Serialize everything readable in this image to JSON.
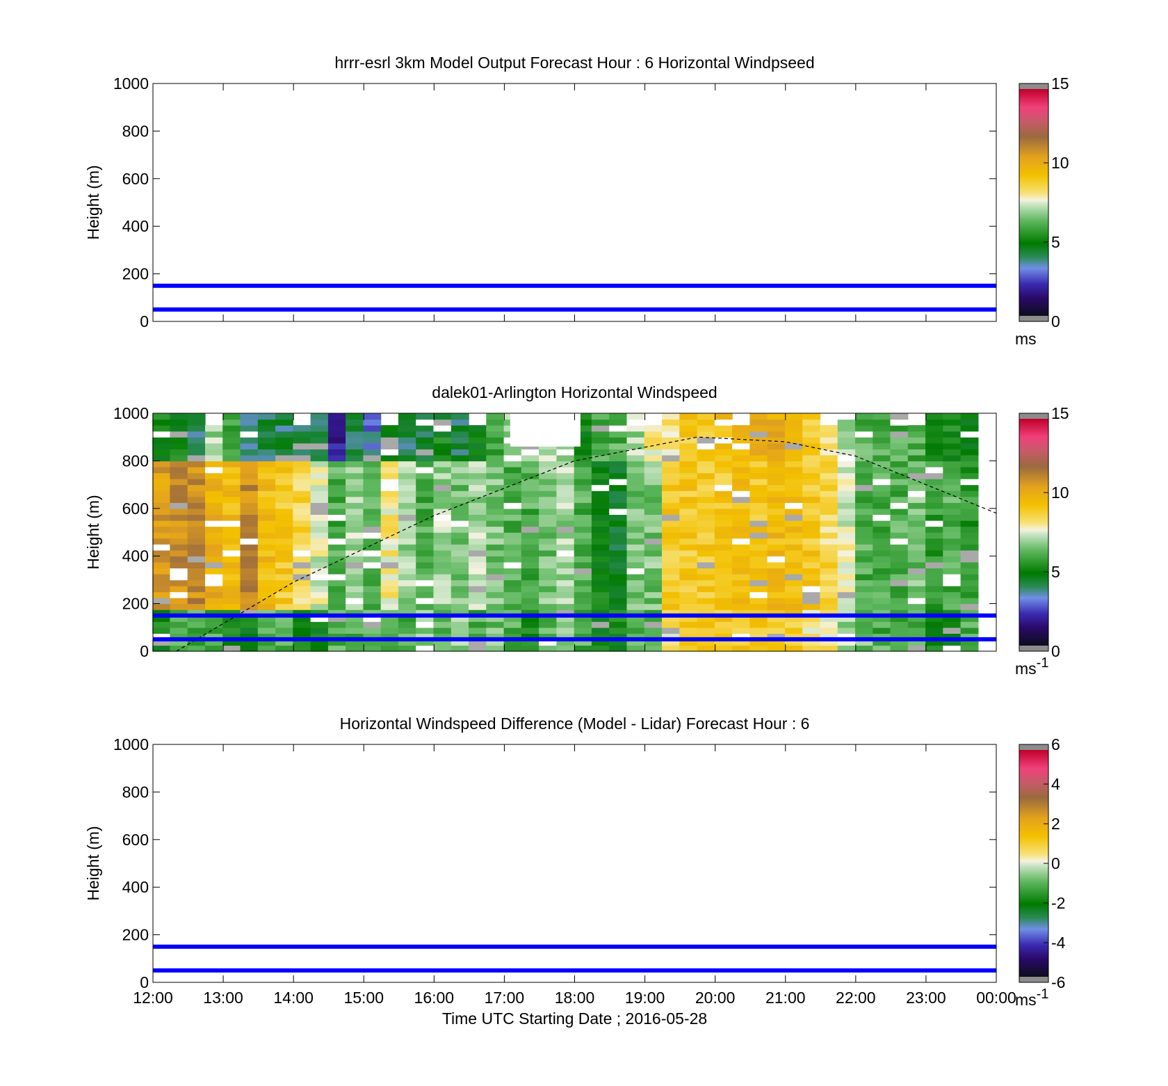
{
  "chart_data": [
    {
      "type": "heatmap",
      "title": "hrrr-esrl 3km Model Output   Forecast Hour : 6 Horizontal Windpseed",
      "ylabel": "Height (m)",
      "xlabel": "",
      "xlim": [
        "12:00",
        "00:00"
      ],
      "ylim": [
        0,
        1000
      ],
      "yticks": [
        0,
        200,
        400,
        600,
        800,
        1000
      ],
      "colorbar": {
        "ticks": [
          "0",
          "5",
          "10",
          "15"
        ],
        "range": [
          0,
          15
        ],
        "unit": "ms",
        "unit_sup": ""
      },
      "cells": "none visible",
      "reference_lines_m": [
        50,
        150
      ],
      "reference_line_color": "#0000ff"
    },
    {
      "type": "heatmap",
      "title": "dalek01-Arlington  Horizontal Windspeed",
      "ylabel": "Height (m)",
      "xlabel": "",
      "xlim": [
        "12:00",
        "00:00"
      ],
      "ylim": [
        0,
        1000
      ],
      "yticks": [
        0,
        200,
        400,
        600,
        800,
        1000
      ],
      "colorbar": {
        "ticks": [
          "0",
          "5",
          "10",
          "15"
        ],
        "range": [
          0,
          15
        ],
        "unit": "ms",
        "unit_sup": "-1"
      },
      "reference_lines_m": [
        50,
        150
      ],
      "reference_line_color": "#0000ff",
      "boundary_layer_curve": {
        "style": "dashed",
        "points": [
          {
            "time": "12:20",
            "height_m": 0
          },
          {
            "time": "14:00",
            "height_m": 290
          },
          {
            "time": "16:00",
            "height_m": 570
          },
          {
            "time": "18:00",
            "height_m": 800
          },
          {
            "time": "19:45",
            "height_m": 900
          },
          {
            "time": "21:00",
            "height_m": 880
          },
          {
            "time": "22:00",
            "height_m": 820
          },
          {
            "time": "00:00",
            "height_m": 580
          }
        ]
      },
      "wind_columns_approx_ms": [
        {
          "time": "12:07",
          "low": 5,
          "mid": 10.5,
          "top": 5
        },
        {
          "time": "12:22",
          "low": 6,
          "mid": 11,
          "top": 5
        },
        {
          "time": "12:37",
          "low": 6,
          "mid": 11,
          "top": 4
        },
        {
          "time": "12:52",
          "low": 6,
          "mid": 10,
          "top": 7
        },
        {
          "time": "13:07",
          "low": 5,
          "mid": 9.5,
          "top": 6
        },
        {
          "time": "13:22",
          "low": 5,
          "mid": 11,
          "top": 4
        },
        {
          "time": "13:37",
          "low": 6,
          "mid": 9.5,
          "top": 4
        },
        {
          "time": "13:52",
          "low": 6,
          "mid": 9,
          "top": 4
        },
        {
          "time": "14:07",
          "low": 5,
          "mid": 8.5,
          "top": 4
        },
        {
          "time": "14:22",
          "low": 5,
          "mid": 7.5,
          "top": 4
        },
        {
          "time": "14:37",
          "low": 6,
          "mid": 6,
          "top": 2
        },
        {
          "time": "14:52",
          "low": 6,
          "mid": 7,
          "top": 4
        },
        {
          "time": "15:07",
          "low": 6,
          "mid": 6,
          "top": 3
        },
        {
          "time": "15:22",
          "low": 6,
          "mid": 8,
          "top": 5
        },
        {
          "time": "15:37",
          "low": 6,
          "mid": 7,
          "top": 4
        },
        {
          "time": "15:52",
          "low": 6.5,
          "mid": 6,
          "top": 4
        },
        {
          "time": "16:07",
          "low": 6,
          "mid": 7,
          "top": 5
        },
        {
          "time": "16:22",
          "low": 7,
          "mid": 6.5,
          "top": 4
        },
        {
          "time": "16:37",
          "low": 6,
          "mid": 7,
          "top": 5
        },
        {
          "time": "16:52",
          "low": 6.5,
          "mid": 6.5,
          "top": 6
        },
        {
          "time": "17:07",
          "low": 6,
          "mid": 6,
          "top": 7
        },
        {
          "time": "17:22",
          "low": 5,
          "mid": 6,
          "top": 7
        },
        {
          "time": "17:37",
          "low": 6,
          "mid": 6.5,
          "top": 7
        },
        {
          "time": "17:52",
          "low": 7,
          "mid": 7,
          "top": 7
        },
        {
          "time": "18:07",
          "low": 6,
          "mid": 6,
          "top": 5
        },
        {
          "time": "18:22",
          "low": 5,
          "mid": 5,
          "top": 6
        },
        {
          "time": "18:37",
          "low": 5,
          "mid": 4.5,
          "top": 6
        },
        {
          "time": "18:52",
          "low": 6,
          "mid": 6.5,
          "top": 7
        },
        {
          "time": "19:07",
          "low": 6,
          "mid": 6.5,
          "top": 8
        },
        {
          "time": "19:22",
          "low": 8,
          "mid": 9,
          "top": 8
        },
        {
          "time": "19:37",
          "low": 9,
          "mid": 9,
          "top": 9
        },
        {
          "time": "19:52",
          "low": 9,
          "mid": 9,
          "top": 9
        },
        {
          "time": "20:07",
          "low": 9,
          "mid": 9,
          "top": 9.5
        },
        {
          "time": "20:22",
          "low": 9,
          "mid": 9.5,
          "top": 9.5
        },
        {
          "time": "20:37",
          "low": 9,
          "mid": 9,
          "top": 10
        },
        {
          "time": "20:52",
          "low": 9,
          "mid": 9.5,
          "top": 10
        },
        {
          "time": "21:07",
          "low": 9,
          "mid": 9.5,
          "top": 10
        },
        {
          "time": "21:22",
          "low": 8,
          "mid": 9,
          "top": 9
        },
        {
          "time": "21:37",
          "low": 8,
          "mid": 8.5,
          "top": 8
        },
        {
          "time": "21:52",
          "low": 7,
          "mid": 7.5,
          "top": 7
        },
        {
          "time": "22:07",
          "low": 6.5,
          "mid": 6,
          "top": 6
        },
        {
          "time": "22:22",
          "low": 6,
          "mid": 6,
          "top": 6
        },
        {
          "time": "22:37",
          "low": 5.5,
          "mid": 6,
          "top": 6
        },
        {
          "time": "22:52",
          "low": 6,
          "mid": 6.5,
          "top": 6
        },
        {
          "time": "23:07",
          "low": 5,
          "mid": 5.5,
          "top": 5
        },
        {
          "time": "23:22",
          "low": 5,
          "mid": 6,
          "top": 5
        },
        {
          "time": "23:37",
          "low": 6,
          "mid": 5.5,
          "top": 5
        }
      ]
    },
    {
      "type": "heatmap",
      "title": "Horizontal Windspeed Difference (Model - Lidar) Forecast Hour : 6",
      "ylabel": "Height (m)",
      "xlabel": "Time UTC  Starting Date ; 2016-05-28",
      "xlim": [
        "12:00",
        "00:00"
      ],
      "ylim": [
        0,
        1000
      ],
      "yticks": [
        0,
        200,
        400,
        600,
        800,
        1000
      ],
      "xticks": [
        "12:00",
        "13:00",
        "14:00",
        "15:00",
        "16:00",
        "17:00",
        "18:00",
        "19:00",
        "20:00",
        "21:00",
        "22:00",
        "23:00",
        "00:00"
      ],
      "colorbar": {
        "ticks": [
          "-6",
          "-4",
          "-2",
          "0",
          "2",
          "4",
          "6"
        ],
        "range": [
          -6,
          6
        ],
        "unit": "ms",
        "unit_sup": "-1"
      },
      "cells": "none visible",
      "reference_lines_m": [
        50,
        150
      ],
      "reference_line_color": "#0000ff"
    }
  ]
}
